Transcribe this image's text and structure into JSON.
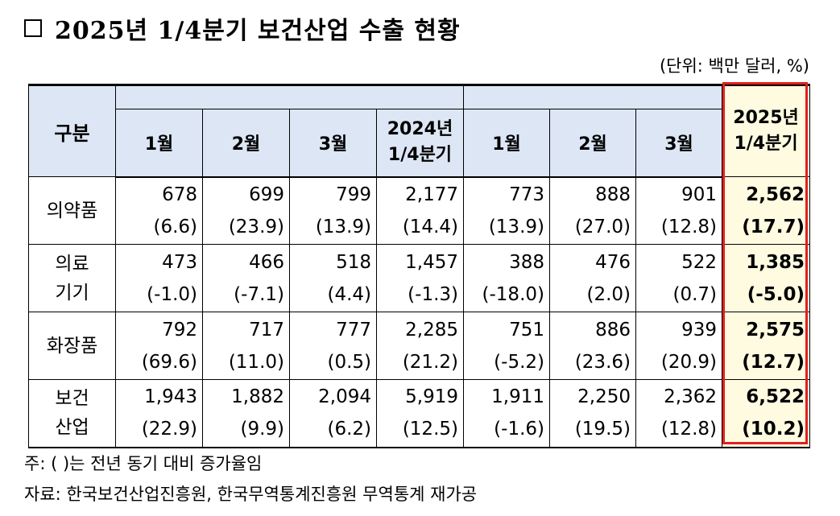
{
  "title": "2025년 1/4분기 보건산업 수출 현황",
  "unit": "(단위: 백만 달러, %)",
  "header": {
    "category": "구분",
    "y2024_months": [
      "1월",
      "2월",
      "3월"
    ],
    "y2024_quarter": [
      "2024년",
      "1/4분기"
    ],
    "y2025_months": [
      "1월",
      "2월",
      "3월"
    ],
    "y2025_quarter": [
      "2025년",
      "1/4분기"
    ]
  },
  "rows": [
    {
      "label": [
        "의약품"
      ],
      "values": [
        "678",
        "699",
        "799",
        "2,177",
        "773",
        "888",
        "901",
        "2,562"
      ],
      "growth": [
        "(6.6)",
        "(23.9)",
        "(13.9)",
        "(14.4)",
        "(13.9)",
        "(27.0)",
        "(12.8)",
        "(17.7)"
      ]
    },
    {
      "label": [
        "의료",
        "기기"
      ],
      "values": [
        "473",
        "466",
        "518",
        "1,457",
        "388",
        "476",
        "522",
        "1,385"
      ],
      "growth": [
        "(-1.0)",
        "(-7.1)",
        "(4.4)",
        "(-1.3)",
        "(-18.0)",
        "(2.0)",
        "(0.7)",
        "(-5.0)"
      ]
    },
    {
      "label": [
        "화장품"
      ],
      "values": [
        "792",
        "717",
        "777",
        "2,285",
        "751",
        "886",
        "939",
        "2,575"
      ],
      "growth": [
        "(69.6)",
        "(11.0)",
        "(0.5)",
        "(21.2)",
        "(-5.2)",
        "(23.6)",
        "(20.9)",
        "(12.7)"
      ]
    },
    {
      "label": [
        "보건",
        "산업"
      ],
      "values": [
        "1,943",
        "1,882",
        "2,094",
        "5,919",
        "1,911",
        "2,250",
        "2,362",
        "6,522"
      ],
      "growth": [
        "(22.9)",
        "(9.9)",
        "(6.2)",
        "(12.5)",
        "(-1.6)",
        "(19.5)",
        "(12.8)",
        "(10.2)"
      ]
    }
  ],
  "notes": {
    "note1": "주: (    )는 전년 동기 대비 증가율임",
    "note2": "자료: 한국보건산업진흥원, 한국무역통계진흥원 무역통계 재가공"
  },
  "colors": {
    "header_bg": "#dce6f4",
    "highlight_bg": "#fffbe1",
    "highlight_border": "#e02020"
  }
}
